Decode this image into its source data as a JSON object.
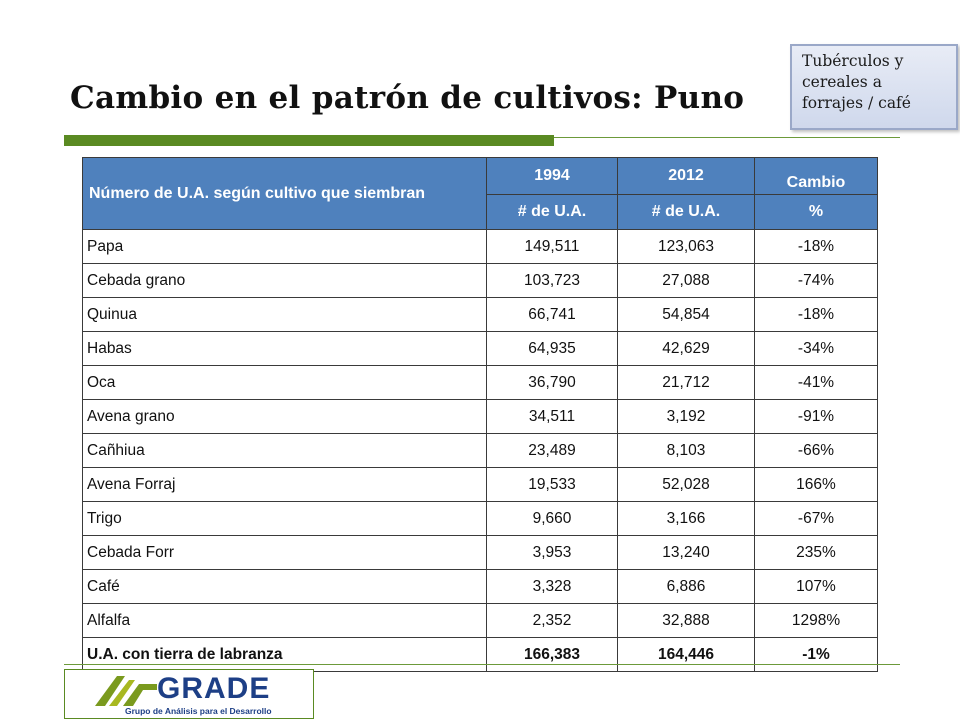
{
  "title": "Cambio en el patrón de cultivos: Puno",
  "callout": "Tubérculos y cereales a forrajes / café",
  "table": {
    "header_main": "Número de U.A. según cultivo que siembran",
    "col_1994": "1994",
    "col_2012": "2012",
    "col_cambio": "Cambio",
    "sub_1994": "# de U.A.",
    "sub_2012": "# de U.A.",
    "sub_cambio": "%",
    "rows": [
      {
        "name": "Papa",
        "y1994": "149,511",
        "y2012": "123,063",
        "cambio": "-18%",
        "dir": "neg"
      },
      {
        "name": "Cebada grano",
        "y1994": "103,723",
        "y2012": "27,088",
        "cambio": "-74%",
        "dir": "neg"
      },
      {
        "name": "Quinua",
        "y1994": "66,741",
        "y2012": "54,854",
        "cambio": "-18%",
        "dir": "neg"
      },
      {
        "name": "Habas",
        "y1994": "64,935",
        "y2012": "42,629",
        "cambio": "-34%",
        "dir": "neg"
      },
      {
        "name": "Oca",
        "y1994": "36,790",
        "y2012": "21,712",
        "cambio": "-41%",
        "dir": "neg"
      },
      {
        "name": "Avena grano",
        "y1994": "34,511",
        "y2012": "3,192",
        "cambio": "-91%",
        "dir": "neg"
      },
      {
        "name": "Cañhiua",
        "y1994": "23,489",
        "y2012": "8,103",
        "cambio": "-66%",
        "dir": "neg"
      },
      {
        "name": "Avena Forraj",
        "y1994": "19,533",
        "y2012": "52,028",
        "cambio": "166%",
        "dir": "pos"
      },
      {
        "name": "Trigo",
        "y1994": "9,660",
        "y2012": "3,166",
        "cambio": "-67%",
        "dir": "neg"
      },
      {
        "name": "Cebada Forr",
        "y1994": "3,953",
        "y2012": "13,240",
        "cambio": "235%",
        "dir": "pos"
      },
      {
        "name": "Café",
        "y1994": "3,328",
        "y2012": "6,886",
        "cambio": "107%",
        "dir": "pos"
      },
      {
        "name": "Alfalfa",
        "y1994": "2,352",
        "y2012": "32,888",
        "cambio": "1298%",
        "dir": "pos"
      }
    ],
    "total": {
      "name": "U.A. con tierra de labranza",
      "y1994": "166,383",
      "y2012": "164,446",
      "cambio": "-1%",
      "dir": "neg"
    }
  },
  "logo": {
    "word": "GRADE",
    "tagline": "Grupo de Análisis para el Desarrollo",
    "icon": "grade-logo-icon"
  },
  "colors": {
    "header_blue": "#4f81bd",
    "negative": "#e01010",
    "positive": "#2f5eac",
    "accent_green": "#5a8a22"
  }
}
